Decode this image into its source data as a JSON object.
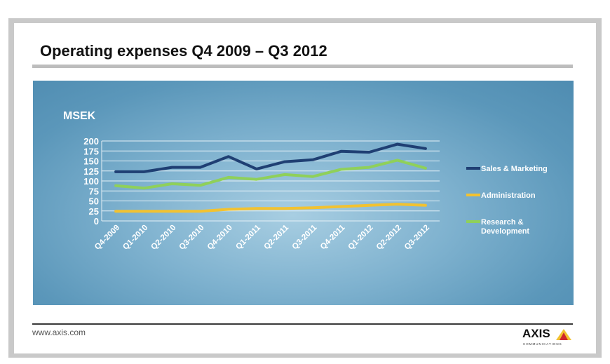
{
  "slide": {
    "title": "Operating expenses Q4 2009 – Q3 2012",
    "footer_url": "www.axis.com",
    "logo_text": "AXIS",
    "logo_subtext": "COMMUNICATIONS"
  },
  "colors": {
    "sales_marketing": "#1f3f73",
    "administration": "#f2c230",
    "research_development": "#8fd05a"
  },
  "chart_data": {
    "type": "line",
    "ylabel": "MSEK",
    "ylim": [
      0,
      200
    ],
    "yticks": [
      0,
      25,
      50,
      75,
      100,
      125,
      150,
      175,
      200
    ],
    "grid": true,
    "legend_position": "right",
    "categories": [
      "Q4-2009",
      "Q1-2010",
      "Q2-2010",
      "Q3-2010",
      "Q4-2010",
      "Q1-2011",
      "Q2-2011",
      "Q3-2011",
      "Q4-2011",
      "Q1-2012",
      "Q2-2012",
      "Q3-2012"
    ],
    "series": [
      {
        "name": "Sales & Marketing",
        "color": "#1f3f73",
        "values": [
          123,
          123,
          134,
          134,
          161,
          130,
          148,
          153,
          174,
          172,
          192,
          181
        ]
      },
      {
        "name": "Administration",
        "color": "#f2c230",
        "values": [
          24,
          24,
          24,
          24,
          29,
          31,
          31,
          33,
          36,
          39,
          42,
          39
        ]
      },
      {
        "name": "Research & Development",
        "legend_lines": [
          "Research &",
          "Development"
        ],
        "color": "#8fd05a",
        "values": [
          88,
          82,
          93,
          89,
          109,
          104,
          116,
          111,
          129,
          134,
          152,
          132
        ]
      }
    ]
  }
}
